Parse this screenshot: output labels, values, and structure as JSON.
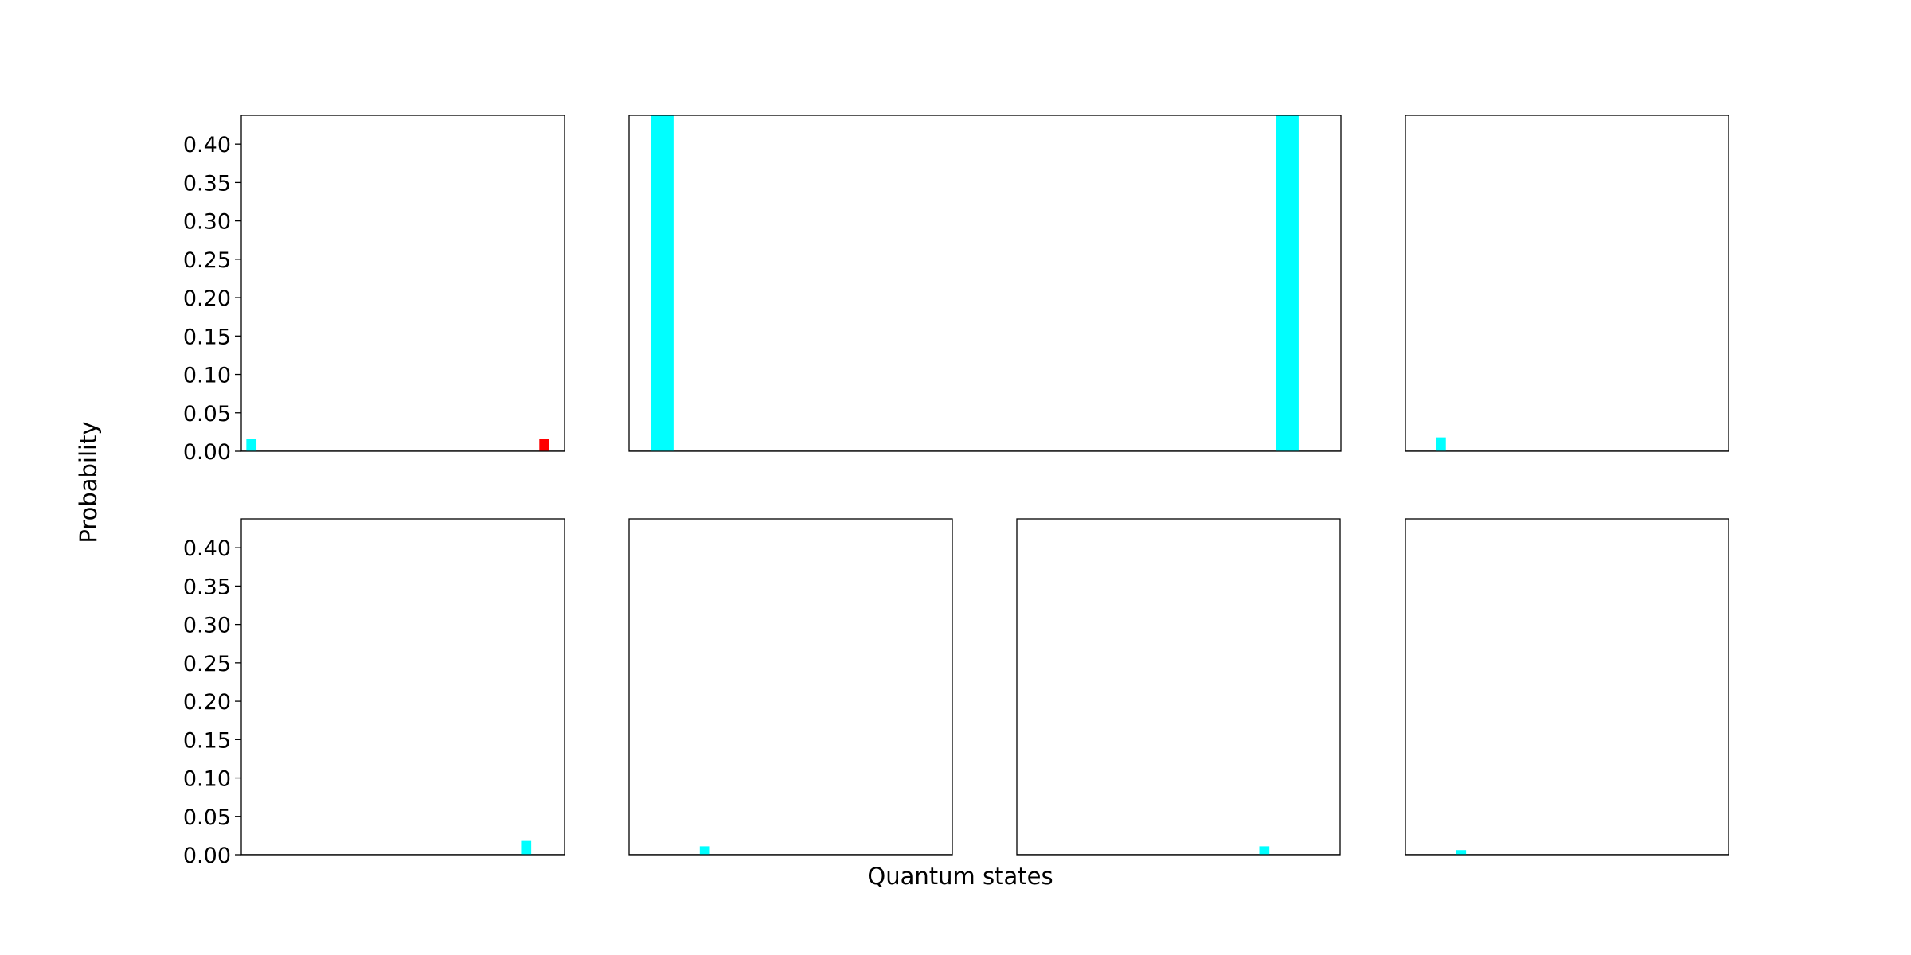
{
  "figure": {
    "xlabel": "Quantum states",
    "ylabel": "Probability"
  },
  "colors": {
    "primary_bar": "#00ffff",
    "highlight_bar": "#ff0000",
    "axes": "#000000",
    "background": "#ffffff"
  },
  "chart_data": [
    {
      "type": "bar",
      "panel": "top-left",
      "xlabel": "",
      "ylabel": "",
      "xlim": [
        0,
        32
      ],
      "ylim": [
        0,
        0.4375
      ],
      "yticks": [
        0.0,
        0.05,
        0.1,
        0.15,
        0.2,
        0.25,
        0.3,
        0.35,
        0.4
      ],
      "ytick_labels": [
        "0.00",
        "0.05",
        "0.10",
        "0.15",
        "0.20",
        "0.25",
        "0.30",
        "0.35",
        "0.40"
      ],
      "show_yticks": true,
      "bars": [
        {
          "x": 1,
          "value": 0.016,
          "color": "#00ffff"
        },
        {
          "x": 30,
          "value": 0.016,
          "color": "#ff0000"
        }
      ]
    },
    {
      "type": "bar",
      "panel": "top-middle",
      "xlabel": "",
      "ylabel": "",
      "xlim": [
        0,
        32
      ],
      "ylim": [
        0,
        0.4375
      ],
      "show_yticks": false,
      "bars": [
        {
          "x": 1.5,
          "value": 0.44,
          "color": "#00ffff"
        },
        {
          "x": 29.6,
          "value": 0.44,
          "color": "#00ffff"
        }
      ]
    },
    {
      "type": "bar",
      "panel": "top-right",
      "xlabel": "",
      "ylabel": "",
      "xlim": [
        0,
        32
      ],
      "ylim": [
        0,
        0.4375
      ],
      "show_yticks": false,
      "bars": [
        {
          "x": 3.5,
          "value": 0.018,
          "color": "#00ffff"
        }
      ]
    },
    {
      "type": "bar",
      "panel": "bottom-1",
      "xlabel": "",
      "ylabel": "",
      "xlim": [
        0,
        32
      ],
      "ylim": [
        0,
        0.4375
      ],
      "yticks": [
        0.0,
        0.05,
        0.1,
        0.15,
        0.2,
        0.25,
        0.3,
        0.35,
        0.4
      ],
      "ytick_labels": [
        "0.00",
        "0.05",
        "0.10",
        "0.15",
        "0.20",
        "0.25",
        "0.30",
        "0.35",
        "0.40"
      ],
      "show_yticks": true,
      "bars": [
        {
          "x": 28.2,
          "value": 0.018,
          "color": "#00ffff"
        }
      ]
    },
    {
      "type": "bar",
      "panel": "bottom-2",
      "xlabel": "",
      "ylabel": "",
      "xlim": [
        0,
        32
      ],
      "ylim": [
        0,
        0.4375
      ],
      "show_yticks": false,
      "bars": [
        {
          "x": 7.5,
          "value": 0.011,
          "color": "#00ffff"
        }
      ]
    },
    {
      "type": "bar",
      "panel": "bottom-3",
      "xlabel": "",
      "ylabel": "",
      "xlim": [
        0,
        32
      ],
      "ylim": [
        0,
        0.4375
      ],
      "show_yticks": false,
      "bars": [
        {
          "x": 24.5,
          "value": 0.011,
          "color": "#00ffff"
        }
      ]
    },
    {
      "type": "bar",
      "panel": "bottom-4",
      "xlabel": "",
      "ylabel": "",
      "xlim": [
        0,
        32
      ],
      "ylim": [
        0,
        0.4375
      ],
      "show_yticks": false,
      "bars": [
        {
          "x": 5.5,
          "value": 0.006,
          "color": "#00ffff"
        }
      ]
    }
  ]
}
